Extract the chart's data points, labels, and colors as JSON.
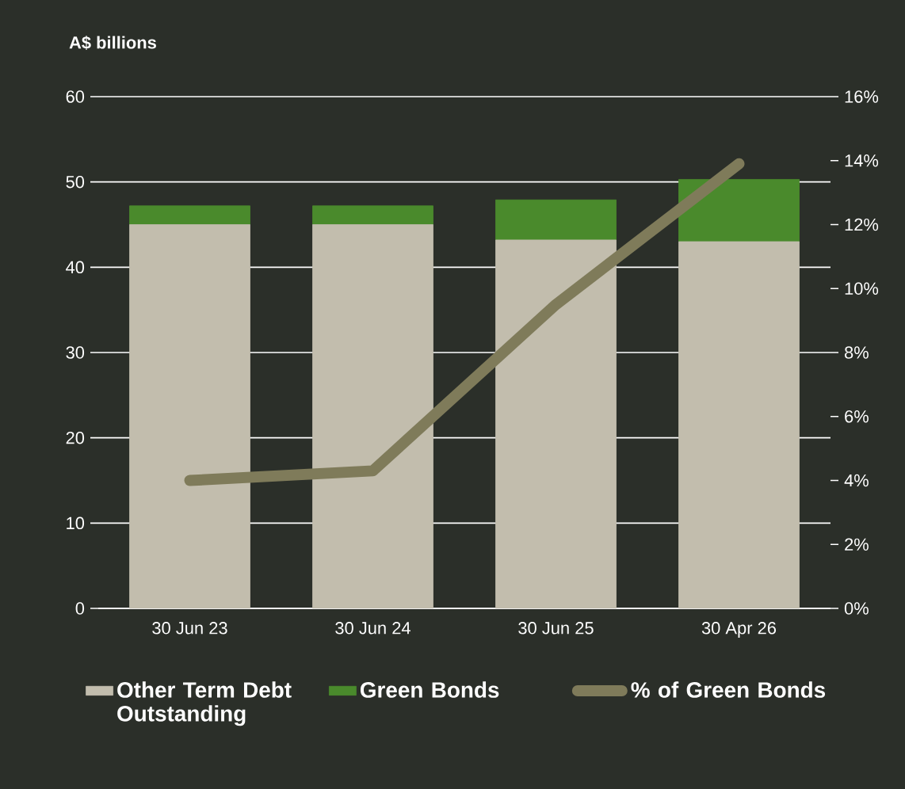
{
  "chart_data": {
    "type": "bar",
    "stacked": true,
    "ylabel": "A$ billions",
    "categories": [
      "30 Jun 23",
      "30 Jun 24",
      "30 Jun 25",
      "30 Apr 26"
    ],
    "series": [
      {
        "name": "Other Term Debt Outstanding",
        "color": "#c2bdad",
        "values": [
          45,
          45,
          43.2,
          43
        ]
      },
      {
        "name": "Green Bonds",
        "color": "#4a8a2c",
        "values": [
          2.2,
          2.2,
          4.7,
          7.3
        ]
      },
      {
        "name": "% of Green Bonds",
        "type": "line",
        "axis": "y2",
        "color": "#7f7b5a",
        "values": [
          4.0,
          4.3,
          9.5,
          13.9
        ]
      }
    ],
    "ylim": [
      0,
      60
    ],
    "yticks": [
      0,
      10,
      20,
      30,
      40,
      50,
      60
    ],
    "y2lim": [
      0,
      16
    ],
    "y2ticks": [
      {
        "value": 0,
        "label": "0%"
      },
      {
        "value": 2,
        "label": "2%"
      },
      {
        "value": 4,
        "label": "4%"
      },
      {
        "value": 6,
        "label": "6%"
      },
      {
        "value": 8,
        "label": "8%"
      },
      {
        "value": 10,
        "label": "10%"
      },
      {
        "value": 12,
        "label": "12%"
      },
      {
        "value": 14,
        "label": "14%"
      },
      {
        "value": 16,
        "label": "16%"
      }
    ],
    "grid": "y",
    "legend": "bottom",
    "marker": "none",
    "line_style": "solid"
  }
}
